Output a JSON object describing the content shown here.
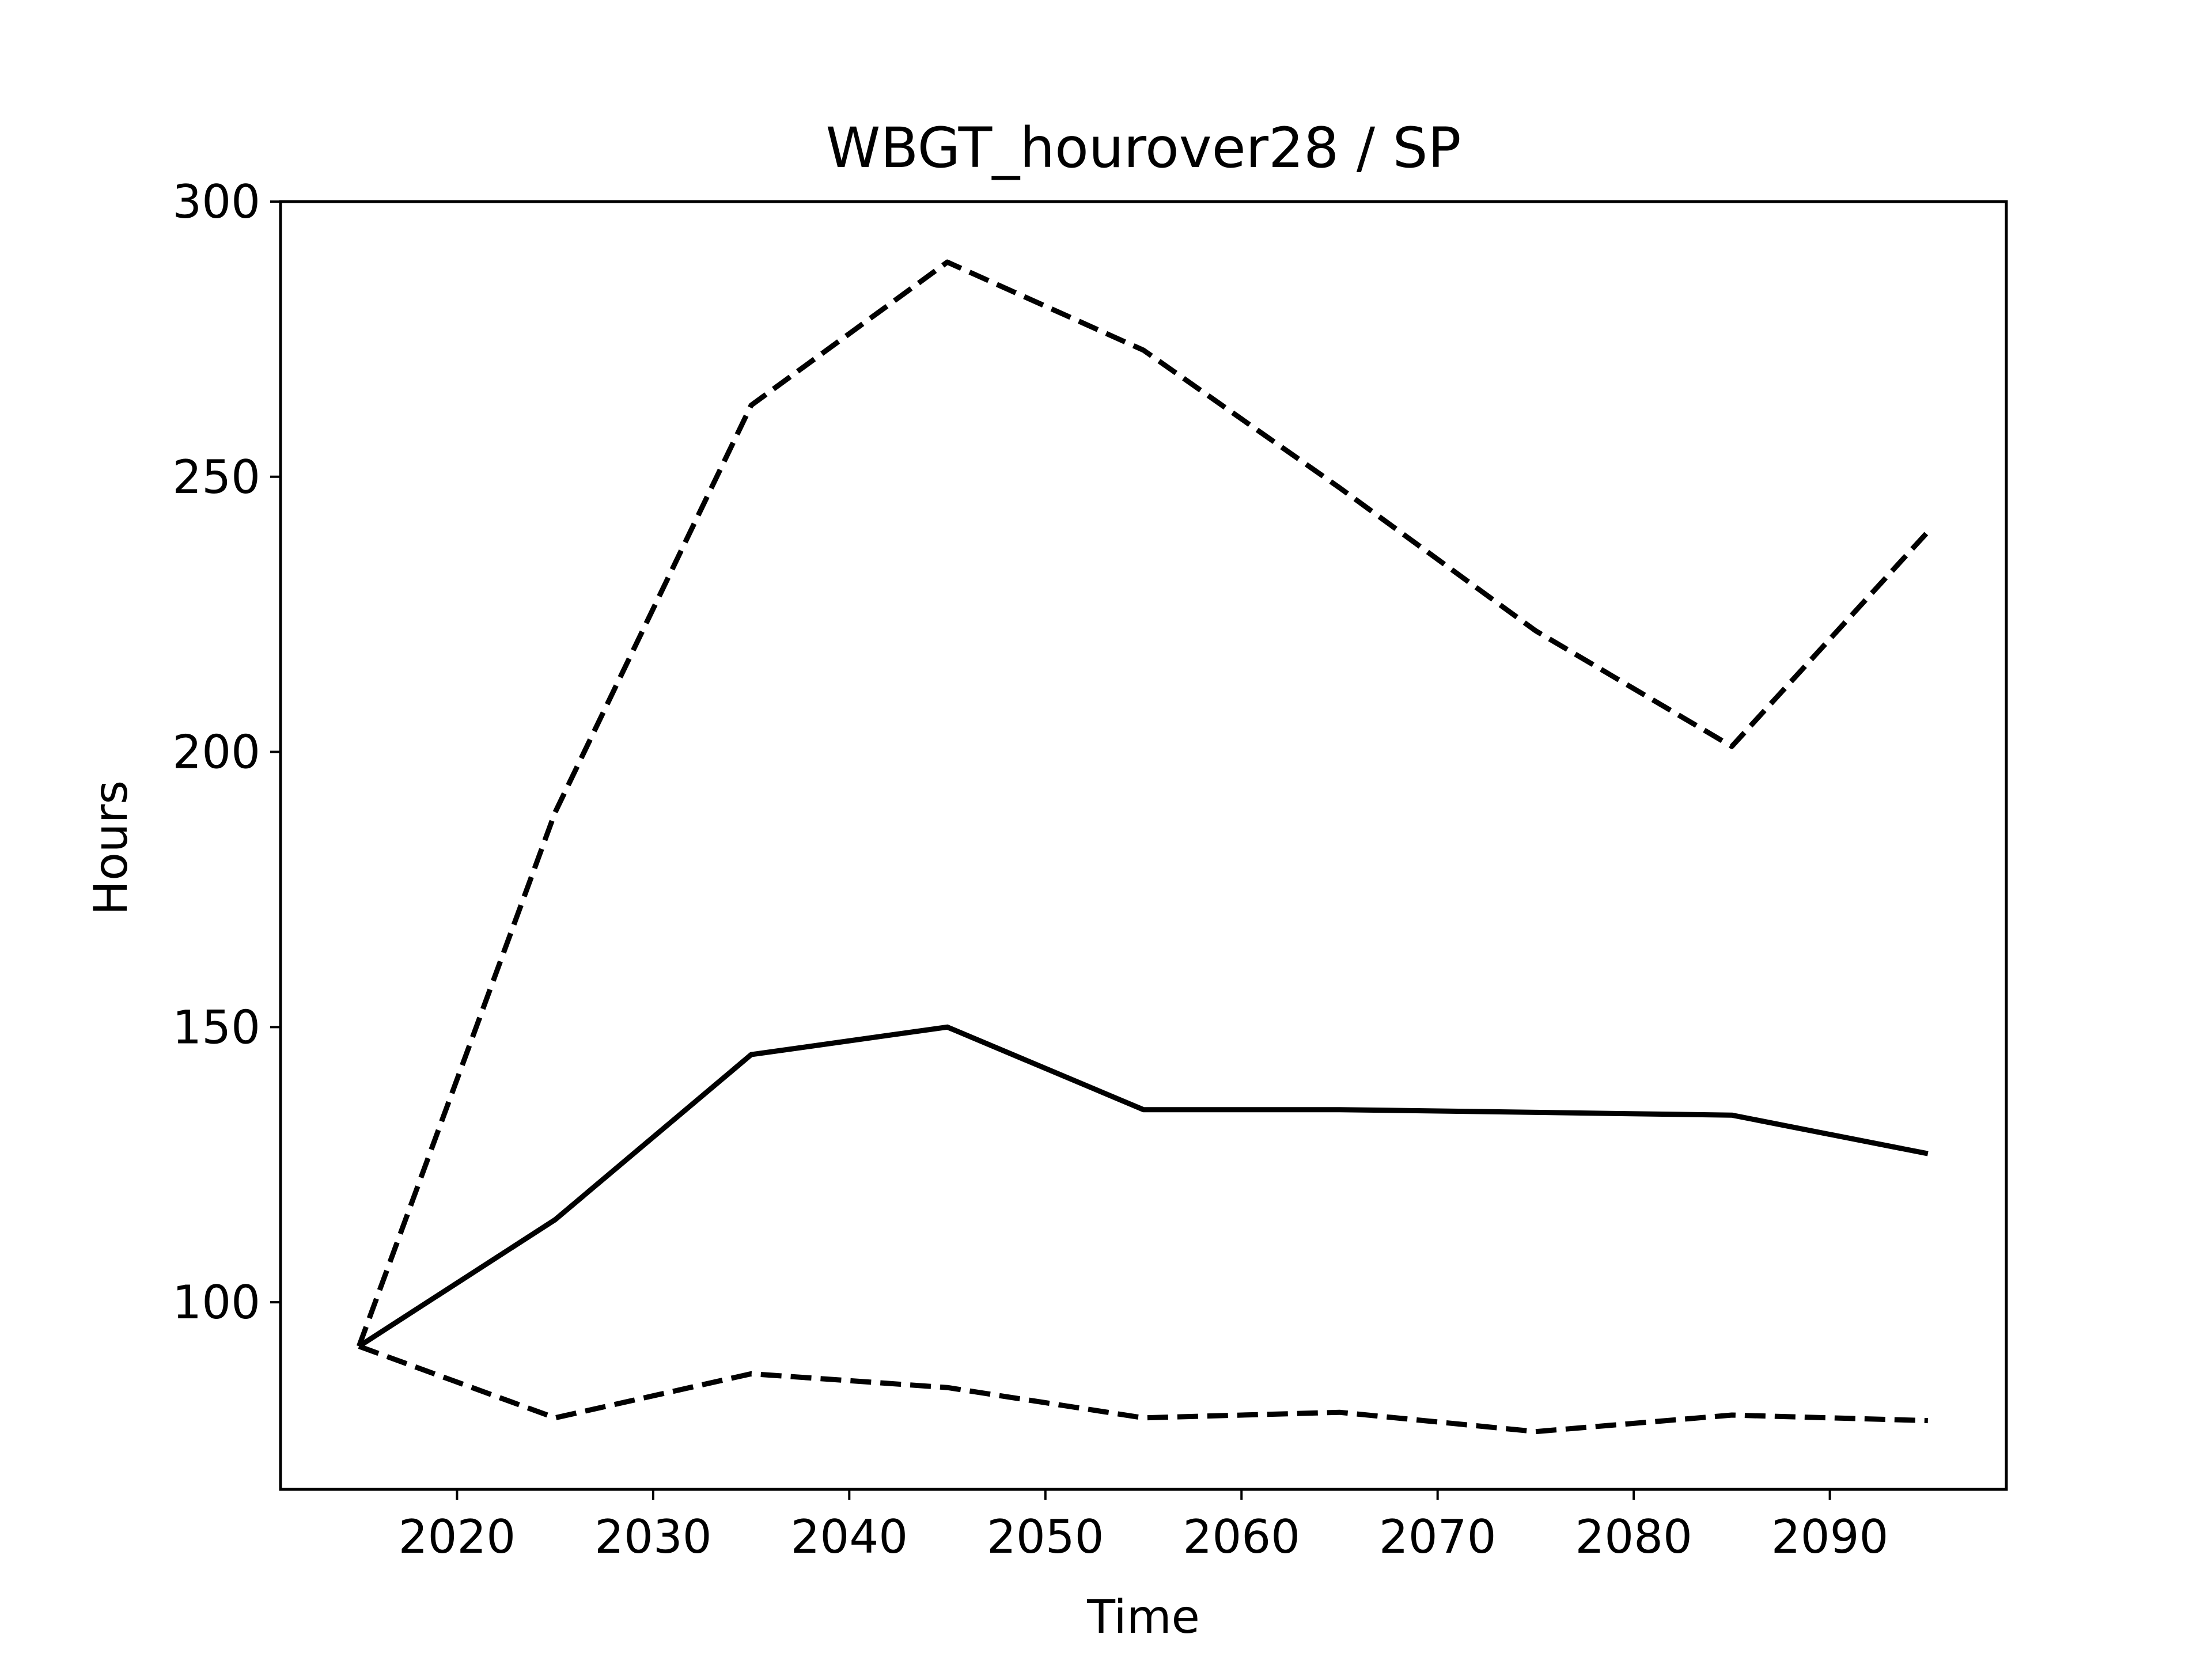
{
  "chart_data": {
    "type": "line",
    "title": "WBGT_hourover28 / SP",
    "xlabel": "Time",
    "ylabel": "Hours",
    "xlim": [
      2011,
      2099
    ],
    "ylim": [
      66,
      300
    ],
    "xticks": [
      2020,
      2030,
      2040,
      2050,
      2060,
      2070,
      2080,
      2090
    ],
    "yticks": [
      100,
      150,
      200,
      250,
      300
    ],
    "grid": false,
    "legend": "none",
    "x": [
      2015,
      2025,
      2035,
      2045,
      2055,
      2065,
      2075,
      2085,
      2095
    ],
    "series": [
      {
        "style": "solid",
        "color": "#000000",
        "values": [
          92,
          115,
          145,
          150,
          135,
          135,
          134.5,
          134,
          127
        ]
      },
      {
        "style": "dashed",
        "color": "#000000",
        "values": [
          92,
          189,
          263,
          289,
          273,
          248,
          222,
          201,
          240
        ]
      },
      {
        "style": "dashed",
        "color": "#000000",
        "values": [
          92,
          79,
          87,
          84.5,
          79,
          80,
          76.5,
          79.5,
          78.5
        ]
      }
    ]
  }
}
